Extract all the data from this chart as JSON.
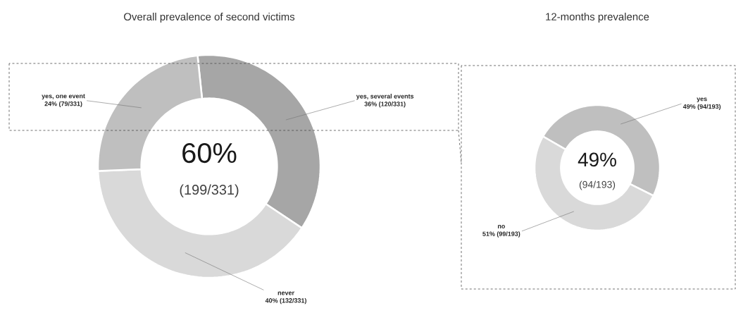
{
  "chart_data": [
    {
      "type": "donut",
      "title": "Overall prevalence of second victims",
      "categories": [
        "yes, several events",
        "never",
        "yes, one event"
      ],
      "values": [
        36,
        40,
        24
      ],
      "value_labels": [
        "36% (120/331)",
        "40% (132/331)",
        "24% (79/331)"
      ],
      "colors": [
        "#a6a6a6",
        "#d9d9d9",
        "#bfbfbf"
      ],
      "annotations": [
        "60%",
        "(199/331)"
      ]
    },
    {
      "type": "donut",
      "title": "12-months prevalence",
      "categories": [
        "yes",
        "no"
      ],
      "values": [
        49,
        51
      ],
      "value_labels": [
        "49% (94/193)",
        "51% (99/193)"
      ],
      "colors": [
        "#bfbfbf",
        "#d9d9d9"
      ],
      "annotations": [
        "49%",
        "(94/193)"
      ]
    }
  ]
}
